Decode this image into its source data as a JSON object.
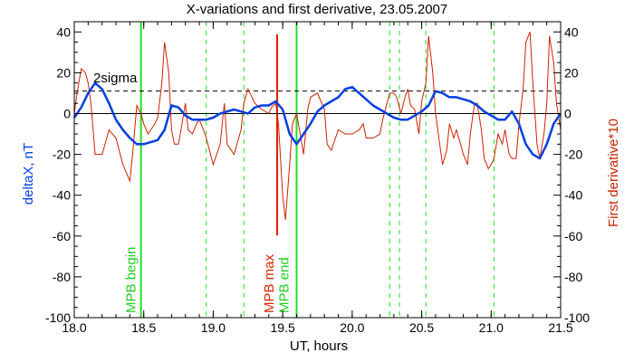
{
  "chart_data": {
    "type": "line",
    "title": "X-variations and first derivative, 23.05.2007",
    "xlabel": "UT, hours",
    "ylabel_left": "deltaX, nT",
    "ylabel_right": "First derivative*10",
    "xlim": [
      18.0,
      21.5
    ],
    "ylim": [
      -100,
      45
    ],
    "x_ticks": [
      "18.0",
      "18.5",
      "19.0",
      "19.5",
      "20.0",
      "20.5",
      "21.0",
      "21.5"
    ],
    "y_ticks": [
      {
        "value": 40,
        "label": "40"
      },
      {
        "value": 20,
        "label": "20"
      },
      {
        "value": 0,
        "label": "0"
      },
      {
        "value": -20,
        "label": "-20"
      },
      {
        "value": -40,
        "label": "-40"
      },
      {
        "value": -60,
        "label": "-60"
      },
      {
        "value": -80,
        "label": "-80"
      },
      {
        "value": -100,
        "label": "-100"
      }
    ],
    "colors": {
      "deltaX": "#0040e0",
      "derivative": "#cc2200",
      "mpb_lines": "#22dd22",
      "mpb_max": "#dd2200",
      "axis_left_label": "#0040e0",
      "axis_right_label": "#cc2200",
      "annotation_green": "#22cc22",
      "annotation_red": "#dd2200"
    },
    "threshold": {
      "value": 11,
      "label": "2sigma",
      "style": "dashed"
    },
    "zero_line": 0,
    "vertical_markers": [
      {
        "x": 18.48,
        "style": "solid",
        "color": "green",
        "label": "MPB begin"
      },
      {
        "x": 18.95,
        "style": "dashed",
        "color": "green",
        "label": ""
      },
      {
        "x": 19.22,
        "style": "dashed",
        "color": "green",
        "label": ""
      },
      {
        "x": 19.46,
        "style": "solid",
        "color": "red",
        "label": "MPB max"
      },
      {
        "x": 19.6,
        "style": "solid",
        "color": "green",
        "label": "MPB end"
      },
      {
        "x": 20.27,
        "style": "dashed",
        "color": "green",
        "label": ""
      },
      {
        "x": 20.34,
        "style": "dashed",
        "color": "green",
        "label": ""
      },
      {
        "x": 20.53,
        "style": "dashed",
        "color": "green",
        "label": ""
      },
      {
        "x": 21.02,
        "style": "dashed",
        "color": "green",
        "label": ""
      }
    ],
    "series": [
      {
        "key": "deltaX",
        "x": [
          18.0,
          18.05,
          18.1,
          18.15,
          18.2,
          18.25,
          18.3,
          18.35,
          18.4,
          18.45,
          18.5,
          18.55,
          18.6,
          18.65,
          18.7,
          18.75,
          18.8,
          18.85,
          18.9,
          18.95,
          19.0,
          19.05,
          19.1,
          19.15,
          19.2,
          19.25,
          19.3,
          19.35,
          19.4,
          19.45,
          19.5,
          19.55,
          19.6,
          19.65,
          19.7,
          19.75,
          19.8,
          19.85,
          19.9,
          19.95,
          20.0,
          20.05,
          20.1,
          20.15,
          20.2,
          20.25,
          20.3,
          20.35,
          20.4,
          20.45,
          20.5,
          20.55,
          20.6,
          20.65,
          20.7,
          20.75,
          20.8,
          20.85,
          20.9,
          20.95,
          21.0,
          21.05,
          21.1,
          21.15,
          21.2,
          21.25,
          21.3,
          21.35,
          21.4,
          21.45,
          21.5
        ],
        "y": [
          -2,
          3,
          10,
          15,
          12,
          5,
          -3,
          -8,
          -12,
          -15,
          -15,
          -14,
          -13,
          -8,
          4,
          3,
          -1,
          -3,
          -3,
          -3,
          -2,
          0,
          1,
          2,
          1,
          0,
          3,
          4,
          4,
          6,
          2,
          -10,
          -15,
          -10,
          -5,
          1,
          4,
          6,
          8,
          12,
          13,
          10,
          7,
          4,
          2,
          0,
          -2,
          -3,
          -3,
          -1,
          1,
          4,
          11,
          10,
          8,
          8,
          7,
          6,
          4,
          1,
          -1,
          -3,
          -3,
          1,
          -5,
          -15,
          -20,
          -22,
          -15,
          -5,
          0
        ]
      },
      {
        "key": "derivative",
        "x": [
          18.0,
          18.02,
          18.05,
          18.08,
          18.1,
          18.12,
          18.15,
          18.2,
          18.25,
          18.3,
          18.35,
          18.4,
          18.42,
          18.45,
          18.48,
          18.5,
          18.53,
          18.55,
          18.58,
          18.6,
          18.63,
          18.65,
          18.68,
          18.7,
          18.72,
          18.75,
          18.78,
          18.8,
          18.82,
          18.85,
          18.88,
          18.9,
          18.93,
          18.95,
          18.98,
          19.0,
          19.05,
          19.08,
          19.1,
          19.15,
          19.2,
          19.22,
          19.25,
          19.3,
          19.35,
          19.4,
          19.42,
          19.45,
          19.47,
          19.5,
          19.52,
          19.55,
          19.57,
          19.6,
          19.62,
          19.65,
          19.68,
          19.7,
          19.75,
          19.8,
          19.82,
          19.85,
          19.88,
          19.9,
          19.95,
          20.0,
          20.05,
          20.08,
          20.1,
          20.15,
          20.2,
          20.22,
          20.25,
          20.27,
          20.3,
          20.32,
          20.35,
          20.38,
          20.4,
          20.42,
          20.45,
          20.48,
          20.5,
          20.53,
          20.55,
          20.58,
          20.6,
          20.63,
          20.65,
          20.68,
          20.7,
          20.73,
          20.75,
          20.78,
          20.8,
          20.83,
          20.85,
          20.88,
          20.9,
          20.93,
          20.95,
          20.98,
          21.0,
          21.02,
          21.05,
          21.08,
          21.1,
          21.13,
          21.15,
          21.18,
          21.2,
          21.23,
          21.25,
          21.28,
          21.3,
          21.33,
          21.35,
          21.38,
          21.4,
          21.42,
          21.45,
          21.47,
          21.5
        ],
        "y": [
          0,
          10,
          22,
          20,
          15,
          5,
          -20,
          -20,
          -8,
          -12,
          -25,
          -33,
          -20,
          4,
          0,
          -5,
          -10,
          -8,
          -5,
          -2,
          15,
          35,
          20,
          -8,
          -15,
          -15,
          -3,
          5,
          -8,
          -10,
          -5,
          -3,
          -8,
          -12,
          -20,
          -25,
          -15,
          5,
          -15,
          -20,
          -8,
          5,
          12,
          5,
          2,
          0,
          3,
          5,
          -5,
          -40,
          -52,
          -25,
          -5,
          0,
          -8,
          -20,
          2,
          8,
          10,
          2,
          -15,
          -18,
          -12,
          -8,
          -10,
          -10,
          -8,
          -5,
          -12,
          -12,
          -10,
          -3,
          5,
          10,
          10,
          8,
          0,
          8,
          12,
          4,
          2,
          -10,
          6,
          15,
          38,
          20,
          0,
          -15,
          -25,
          -18,
          -5,
          -12,
          -8,
          -15,
          -20,
          -25,
          -10,
          5,
          5,
          -8,
          -22,
          -27,
          -25,
          -22,
          -10,
          -15,
          -8,
          -20,
          -22,
          -22,
          -5,
          12,
          35,
          40,
          15,
          -15,
          -22,
          -10,
          5,
          38,
          25,
          5,
          -8
        ]
      }
    ]
  }
}
